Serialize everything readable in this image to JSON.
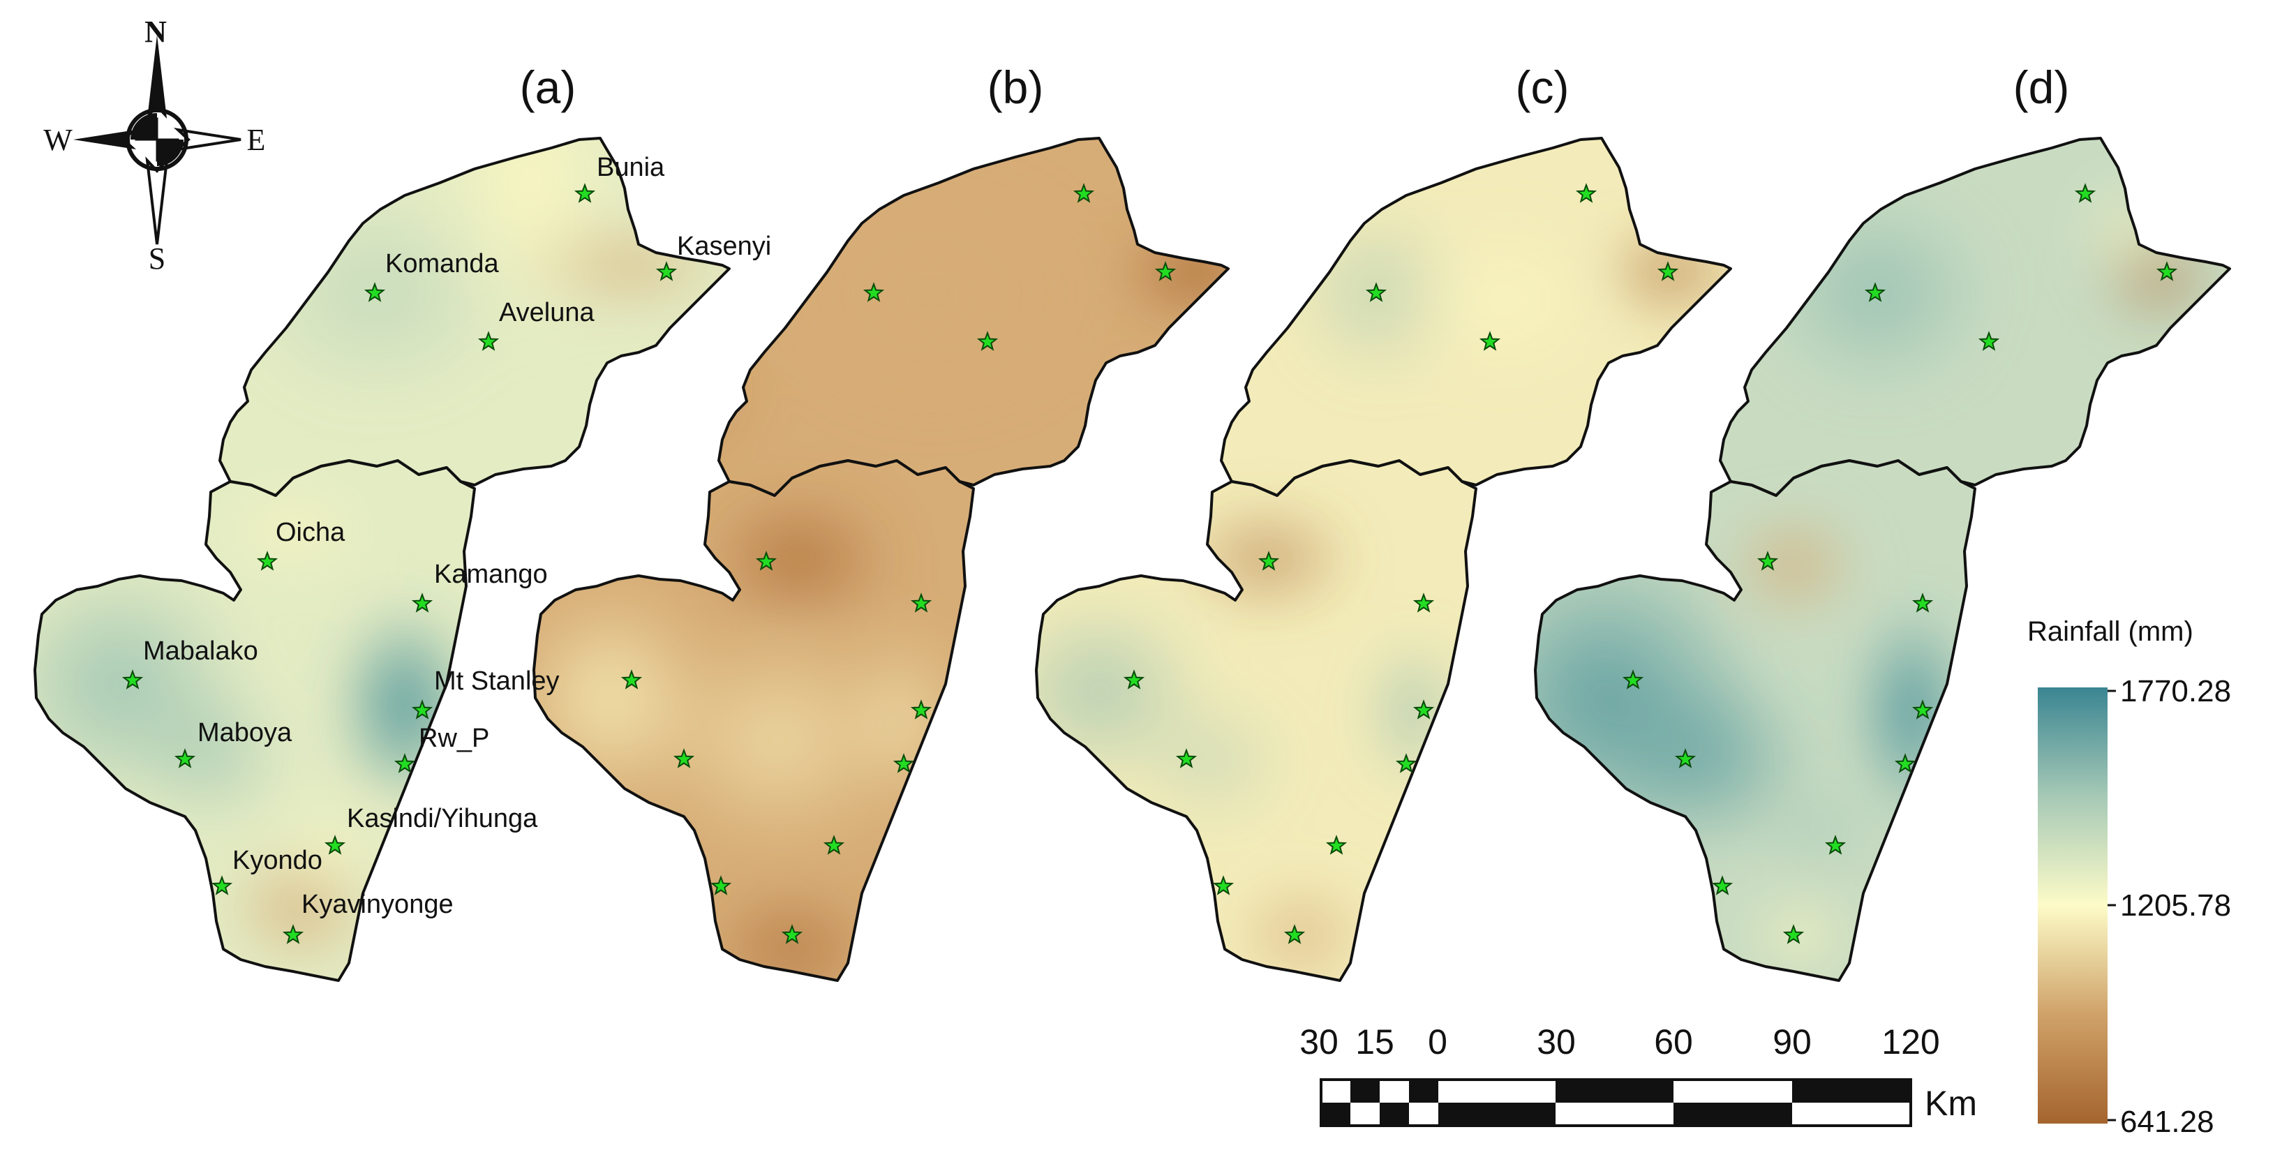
{
  "panels": [
    {
      "label": "(a)",
      "scheme": "A"
    },
    {
      "label": "(b)",
      "scheme": "B"
    },
    {
      "label": "(c)",
      "scheme": "C"
    },
    {
      "label": "(d)",
      "scheme": "D"
    }
  ],
  "stations": [
    "Bunia",
    "Kasenyi",
    "Komanda",
    "Aveluna",
    "Oicha",
    "Kamango",
    "Mabalako",
    "Mt Stanley",
    "Rw_P",
    "Maboya",
    "Kasindi/Yihunga",
    "Kyondo",
    "Kyavinyonge"
  ],
  "compass": {
    "north": "N",
    "south": "S",
    "east": "E",
    "west": "W"
  },
  "scale_bar": {
    "ticks": [
      "30",
      "15",
      "0",
      "30",
      "60",
      "90",
      "120"
    ],
    "unit": "Km"
  },
  "legend": {
    "title": "Rainfall (mm)",
    "max_label": "1770.28",
    "mid_label": "1205.78",
    "min_label": "641.28",
    "max_color": "#3a8592",
    "mid_color": "#fdfbc8",
    "min_color": "#a5642e"
  }
}
